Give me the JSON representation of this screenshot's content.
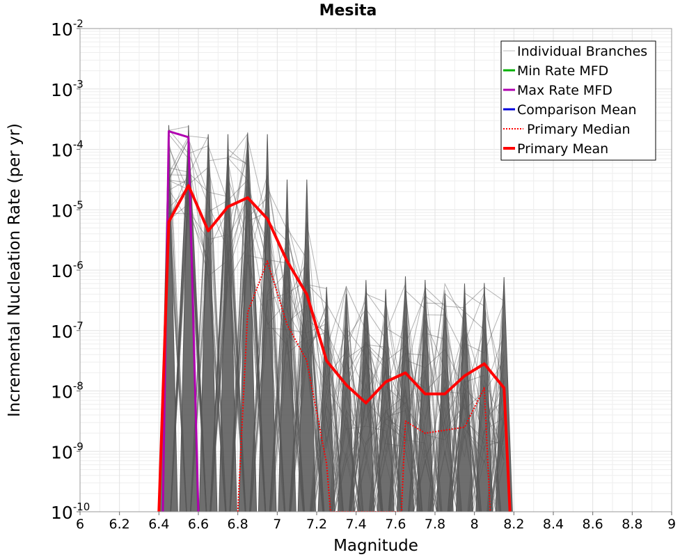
{
  "chart_data": {
    "type": "line",
    "title": "Mesita",
    "xlabel": "Magnitude",
    "ylabel": "Incremental Nucleation Rate (per yr)",
    "xlim": [
      6,
      9
    ],
    "ylim_log10": [
      -10,
      -2
    ],
    "y_scale": "log",
    "grid": true,
    "legend_position": "top-right",
    "x_ticks": [
      "6",
      "6.2",
      "6.4",
      "6.6",
      "6.8",
      "7",
      "7.2",
      "7.4",
      "7.6",
      "7.8",
      "8",
      "8.2",
      "8.4",
      "8.6",
      "8.8",
      "9"
    ],
    "y_ticks": [
      {
        "base": "10",
        "exp": "-2"
      },
      {
        "base": "10",
        "exp": "-3"
      },
      {
        "base": "10",
        "exp": "-4"
      },
      {
        "base": "10",
        "exp": "-5"
      },
      {
        "base": "10",
        "exp": "-6"
      },
      {
        "base": "10",
        "exp": "-7"
      },
      {
        "base": "10",
        "exp": "-8"
      },
      {
        "base": "10",
        "exp": "-9"
      },
      {
        "base": "10",
        "exp": "-10"
      }
    ],
    "legend": [
      "Individual Branches",
      "Min Rate MFD",
      "Max Rate MFD",
      "Comparison Mean",
      "Primary Median",
      "Primary Mean"
    ],
    "series": [
      {
        "name": "Max Rate MFD",
        "color": "#b000b0",
        "x": [
          6.42,
          6.45,
          6.55,
          6.6
        ],
        "log10_y": [
          -10.0,
          -3.7,
          -3.8,
          -10.0
        ]
      },
      {
        "name": "Primary Mean",
        "color": "#ff0000",
        "x": [
          6.4,
          6.45,
          6.55,
          6.65,
          6.75,
          6.85,
          6.95,
          7.05,
          7.15,
          7.25,
          7.35,
          7.45,
          7.55,
          7.65,
          7.75,
          7.85,
          7.95,
          8.05,
          8.15,
          8.18
        ],
        "log10_y": [
          -10.0,
          -5.2,
          -4.6,
          -5.35,
          -4.95,
          -4.8,
          -5.15,
          -5.85,
          -6.4,
          -7.5,
          -7.9,
          -8.2,
          -7.85,
          -7.7,
          -8.05,
          -8.05,
          -7.75,
          -7.55,
          -7.95,
          -10.0
        ]
      },
      {
        "name": "Primary Median",
        "color": "#ff0000",
        "x": [
          6.8,
          6.85,
          6.95,
          7.05,
          7.15,
          7.25,
          7.27,
          7.63,
          7.65,
          7.75,
          7.85,
          7.95,
          8.05,
          8.08
        ],
        "log10_y": [
          -10.0,
          -6.7,
          -5.85,
          -6.9,
          -7.5,
          -9.2,
          -10.0,
          -10.0,
          -8.5,
          -8.7,
          -8.65,
          -8.6,
          -7.95,
          -10.0
        ]
      }
    ],
    "individual_branches_bins": [
      6.45,
      6.55,
      6.65,
      6.75,
      6.85,
      6.95,
      7.05,
      7.15,
      7.25,
      7.35,
      7.45,
      7.55,
      7.65,
      7.75,
      7.85,
      7.95,
      8.05,
      8.15
    ]
  },
  "colors": {
    "branches": "#555555",
    "min_rate": "#00b000",
    "max_rate": "#b000b0",
    "comparison": "#0000dd",
    "primary": "#ff0000"
  }
}
